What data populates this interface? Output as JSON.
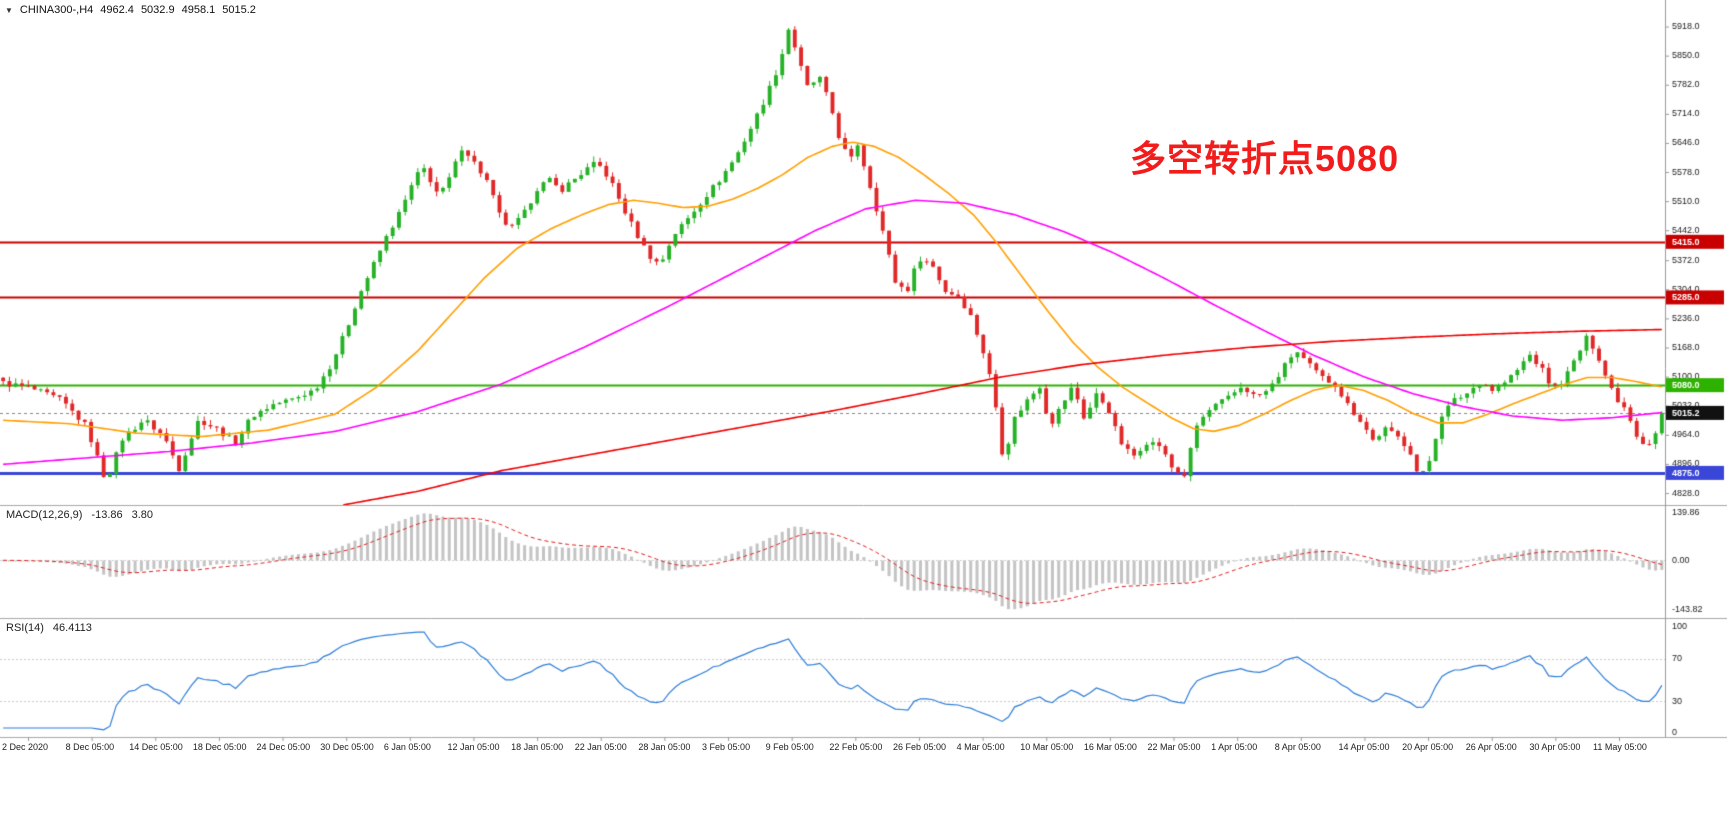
{
  "header": {
    "collapse_icon": "▼",
    "symbol": "CHINA300-,H4",
    "open": "4962.4",
    "high": "5032.9",
    "low": "4958.1",
    "close": "5015.2"
  },
  "annotation": {
    "text": "多空转折点5080",
    "color": "#f21c1c"
  },
  "chart_data": {
    "type": "candlestick",
    "symbol": "CHINA300-",
    "timeframe": "H4",
    "current": {
      "open": 4962.4,
      "high": 5032.9,
      "low": 4958.1,
      "close": 5015.2
    },
    "bars": 265,
    "price_range": [
      4800,
      5980
    ],
    "up_color": "#26b226",
    "down_color": "#e02828",
    "y_ticks": [
      "5918.0",
      "5850.0",
      "5782.0",
      "5714.0",
      "5646.0",
      "5578.0",
      "5510.0",
      "5442.0",
      "5372.0",
      "5304.0",
      "5236.0",
      "5168.0",
      "5100.0",
      "5032.0",
      "4964.0",
      "4896.0",
      "4828.0"
    ],
    "horizontal_lines": [
      {
        "value": 5415.0,
        "label": "5415.0",
        "color": "#c80000",
        "width": 2
      },
      {
        "value": 5285.0,
        "label": "5285.0",
        "color": "#c80000",
        "width": 2
      },
      {
        "value": 5080.0,
        "label": "5080.0",
        "color": "#2db200",
        "width": 2
      },
      {
        "value": 4875.0,
        "label": "4875.0",
        "color": "#3a46d8",
        "width": 3
      }
    ],
    "current_price": {
      "value": 5015.2,
      "label": "5015.2",
      "bg": "#111111"
    },
    "price_path": [
      [
        0.0,
        5085
      ],
      [
        0.015,
        5075
      ],
      [
        0.035,
        5045
      ],
      [
        0.05,
        4985
      ],
      [
        0.062,
        4855
      ],
      [
        0.072,
        4955
      ],
      [
        0.085,
        5000
      ],
      [
        0.097,
        4960
      ],
      [
        0.106,
        4885
      ],
      [
        0.118,
        5000
      ],
      [
        0.13,
        4975
      ],
      [
        0.14,
        4945
      ],
      [
        0.15,
        5008
      ],
      [
        0.163,
        5035
      ],
      [
        0.175,
        5048
      ],
      [
        0.188,
        5070
      ],
      [
        0.198,
        5130
      ],
      [
        0.207,
        5210
      ],
      [
        0.214,
        5285
      ],
      [
        0.222,
        5350
      ],
      [
        0.231,
        5425
      ],
      [
        0.24,
        5490
      ],
      [
        0.248,
        5560
      ],
      [
        0.253,
        5590
      ],
      [
        0.259,
        5550
      ],
      [
        0.263,
        5520
      ],
      [
        0.27,
        5570
      ],
      [
        0.277,
        5640
      ],
      [
        0.284,
        5600
      ],
      [
        0.292,
        5555
      ],
      [
        0.3,
        5470
      ],
      [
        0.306,
        5445
      ],
      [
        0.314,
        5480
      ],
      [
        0.322,
        5540
      ],
      [
        0.329,
        5560
      ],
      [
        0.336,
        5535
      ],
      [
        0.344,
        5560
      ],
      [
        0.352,
        5585
      ],
      [
        0.358,
        5600
      ],
      [
        0.366,
        5560
      ],
      [
        0.373,
        5500
      ],
      [
        0.381,
        5440
      ],
      [
        0.389,
        5385
      ],
      [
        0.396,
        5360
      ],
      [
        0.404,
        5430
      ],
      [
        0.413,
        5470
      ],
      [
        0.422,
        5515
      ],
      [
        0.432,
        5560
      ],
      [
        0.442,
        5615
      ],
      [
        0.452,
        5690
      ],
      [
        0.46,
        5755
      ],
      [
        0.468,
        5830
      ],
      [
        0.474,
        5920
      ],
      [
        0.479,
        5845
      ],
      [
        0.485,
        5775
      ],
      [
        0.492,
        5800
      ],
      [
        0.499,
        5730
      ],
      [
        0.505,
        5645
      ],
      [
        0.511,
        5605
      ],
      [
        0.515,
        5645
      ],
      [
        0.522,
        5555
      ],
      [
        0.53,
        5445
      ],
      [
        0.538,
        5320
      ],
      [
        0.545,
        5300
      ],
      [
        0.552,
        5378
      ],
      [
        0.56,
        5362
      ],
      [
        0.568,
        5300
      ],
      [
        0.576,
        5288
      ],
      [
        0.583,
        5245
      ],
      [
        0.59,
        5170
      ],
      [
        0.597,
        5070
      ],
      [
        0.603,
        4905
      ],
      [
        0.61,
        5005
      ],
      [
        0.618,
        5048
      ],
      [
        0.625,
        5078
      ],
      [
        0.631,
        4985
      ],
      [
        0.638,
        5032
      ],
      [
        0.645,
        5078
      ],
      [
        0.652,
        5000
      ],
      [
        0.659,
        5058
      ],
      [
        0.666,
        5028
      ],
      [
        0.673,
        4950
      ],
      [
        0.681,
        4912
      ],
      [
        0.689,
        4948
      ],
      [
        0.697,
        4940
      ],
      [
        0.705,
        4885
      ],
      [
        0.712,
        4868
      ],
      [
        0.72,
        4990
      ],
      [
        0.729,
        5028
      ],
      [
        0.738,
        5048
      ],
      [
        0.747,
        5078
      ],
      [
        0.755,
        5052
      ],
      [
        0.763,
        5068
      ],
      [
        0.771,
        5115
      ],
      [
        0.779,
        5162
      ],
      [
        0.787,
        5128
      ],
      [
        0.795,
        5098
      ],
      [
        0.803,
        5082
      ],
      [
        0.811,
        5032
      ],
      [
        0.819,
        4995
      ],
      [
        0.826,
        4950
      ],
      [
        0.833,
        4978
      ],
      [
        0.841,
        4958
      ],
      [
        0.848,
        4930
      ],
      [
        0.854,
        4858
      ],
      [
        0.86,
        4905
      ],
      [
        0.867,
        5010
      ],
      [
        0.875,
        5045
      ],
      [
        0.883,
        5062
      ],
      [
        0.891,
        5090
      ],
      [
        0.898,
        5068
      ],
      [
        0.906,
        5088
      ],
      [
        0.913,
        5115
      ],
      [
        0.92,
        5152
      ],
      [
        0.927,
        5122
      ],
      [
        0.934,
        5072
      ],
      [
        0.941,
        5092
      ],
      [
        0.948,
        5142
      ],
      [
        0.955,
        5192
      ],
      [
        0.961,
        5155
      ],
      [
        0.967,
        5092
      ],
      [
        0.973,
        5048
      ],
      [
        0.979,
        5022
      ],
      [
        0.985,
        4962
      ],
      [
        0.991,
        4938
      ],
      [
        0.996,
        4965
      ],
      [
        1.0,
        5012
      ]
    ],
    "moving_averages": [
      {
        "name": "ma-fast-orange",
        "color": "#ff9f00",
        "points": [
          [
            0.0,
            4998
          ],
          [
            0.04,
            4990
          ],
          [
            0.08,
            4968
          ],
          [
            0.12,
            4960
          ],
          [
            0.16,
            4975
          ],
          [
            0.2,
            5012
          ],
          [
            0.225,
            5075
          ],
          [
            0.25,
            5160
          ],
          [
            0.27,
            5245
          ],
          [
            0.29,
            5330
          ],
          [
            0.31,
            5400
          ],
          [
            0.33,
            5445
          ],
          [
            0.35,
            5480
          ],
          [
            0.365,
            5502
          ],
          [
            0.38,
            5512
          ],
          [
            0.395,
            5505
          ],
          [
            0.41,
            5495
          ],
          [
            0.425,
            5498
          ],
          [
            0.44,
            5515
          ],
          [
            0.455,
            5540
          ],
          [
            0.47,
            5572
          ],
          [
            0.485,
            5612
          ],
          [
            0.5,
            5638
          ],
          [
            0.512,
            5648
          ],
          [
            0.525,
            5638
          ],
          [
            0.54,
            5612
          ],
          [
            0.555,
            5572
          ],
          [
            0.57,
            5528
          ],
          [
            0.585,
            5478
          ],
          [
            0.6,
            5408
          ],
          [
            0.615,
            5330
          ],
          [
            0.63,
            5252
          ],
          [
            0.645,
            5180
          ],
          [
            0.66,
            5122
          ],
          [
            0.675,
            5075
          ],
          [
            0.69,
            5038
          ],
          [
            0.705,
            5002
          ],
          [
            0.718,
            4978
          ],
          [
            0.73,
            4972
          ],
          [
            0.745,
            4986
          ],
          [
            0.76,
            5012
          ],
          [
            0.775,
            5042
          ],
          [
            0.79,
            5068
          ],
          [
            0.805,
            5080
          ],
          [
            0.82,
            5068
          ],
          [
            0.835,
            5044
          ],
          [
            0.85,
            5014
          ],
          [
            0.865,
            4992
          ],
          [
            0.88,
            4992
          ],
          [
            0.895,
            5012
          ],
          [
            0.91,
            5036
          ],
          [
            0.925,
            5058
          ],
          [
            0.94,
            5080
          ],
          [
            0.955,
            5098
          ],
          [
            0.97,
            5098
          ],
          [
            0.985,
            5088
          ],
          [
            1.0,
            5076
          ]
        ]
      },
      {
        "name": "ma-mid-magenta",
        "color": "#ff00ff",
        "points": [
          [
            0.0,
            4895
          ],
          [
            0.05,
            4910
          ],
          [
            0.1,
            4925
          ],
          [
            0.15,
            4945
          ],
          [
            0.2,
            4972
          ],
          [
            0.25,
            5018
          ],
          [
            0.3,
            5082
          ],
          [
            0.35,
            5168
          ],
          [
            0.4,
            5262
          ],
          [
            0.45,
            5362
          ],
          [
            0.49,
            5442
          ],
          [
            0.52,
            5492
          ],
          [
            0.55,
            5512
          ],
          [
            0.58,
            5505
          ],
          [
            0.61,
            5478
          ],
          [
            0.64,
            5438
          ],
          [
            0.67,
            5388
          ],
          [
            0.7,
            5330
          ],
          [
            0.73,
            5268
          ],
          [
            0.76,
            5208
          ],
          [
            0.79,
            5150
          ],
          [
            0.82,
            5100
          ],
          [
            0.85,
            5060
          ],
          [
            0.88,
            5030
          ],
          [
            0.91,
            5008
          ],
          [
            0.94,
            4998
          ],
          [
            0.97,
            5004
          ],
          [
            1.0,
            5016
          ]
        ]
      },
      {
        "name": "ma-slow-red",
        "color": "#ee0000",
        "points": [
          [
            0.205,
            4800
          ],
          [
            0.25,
            4832
          ],
          [
            0.3,
            4880
          ],
          [
            0.35,
            4915
          ],
          [
            0.4,
            4950
          ],
          [
            0.45,
            4985
          ],
          [
            0.5,
            5020
          ],
          [
            0.55,
            5058
          ],
          [
            0.6,
            5098
          ],
          [
            0.65,
            5128
          ],
          [
            0.7,
            5150
          ],
          [
            0.75,
            5168
          ],
          [
            0.8,
            5182
          ],
          [
            0.85,
            5192
          ],
          [
            0.9,
            5200
          ],
          [
            0.95,
            5206
          ],
          [
            1.0,
            5210
          ]
        ]
      }
    ],
    "macd": {
      "label": "MACD(12,26,9)",
      "value": "-13.86",
      "signal": "3.80",
      "period_fast": 12,
      "period_slow": 26,
      "period_signal": 9,
      "range": [
        -170,
        160
      ],
      "peak": 144,
      "histogram_color": "#c4c4c4",
      "signal_color": "#e02020",
      "ticks": [
        {
          "label": "139.86",
          "value": 139.86
        },
        {
          "label": "0.00",
          "value": 0
        },
        {
          "label": "-143.82",
          "value": -143.82
        }
      ]
    },
    "rsi": {
      "label": "RSI(14)",
      "value": "46.4113",
      "period": 14,
      "color": "#2f7ed8",
      "levels": [
        70,
        30
      ],
      "ticks": [
        {
          "label": "100",
          "value": 100
        },
        {
          "label": "70",
          "value": 70
        },
        {
          "label": "30",
          "value": 30
        },
        {
          "label": "0",
          "value": 0
        }
      ]
    },
    "x_labels": [
      "2 Dec 2020",
      "8 Dec 05:00",
      "14 Dec 05:00",
      "18 Dec 05:00",
      "24 Dec 05:00",
      "30 Dec 05:00",
      "6 Jan 05:00",
      "12 Jan 05:00",
      "18 Jan 05:00",
      "22 Jan 05:00",
      "28 Jan 05:00",
      "3 Feb 05:00",
      "9 Feb 05:00",
      "22 Feb 05:00",
      "26 Feb 05:00",
      "4 Mar 05:00",
      "10 Mar 05:00",
      "16 Mar 05:00",
      "22 Mar 05:00",
      "1 Apr 05:00",
      "8 Apr 05:00",
      "14 Apr 05:00",
      "20 Apr 05:00",
      "26 Apr 05:00",
      "30 Apr 05:00",
      "11 May 05:00"
    ]
  }
}
